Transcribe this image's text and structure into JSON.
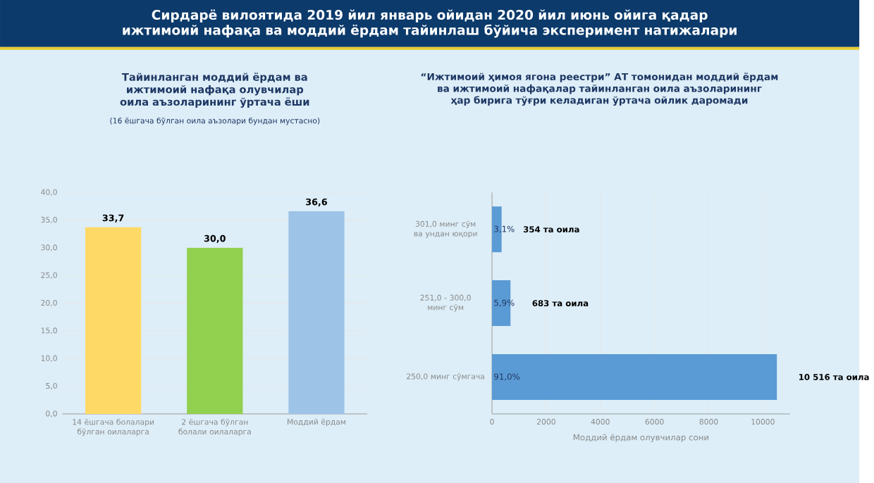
{
  "chart_data": [
    {
      "type": "bar",
      "title": "Тайинланган моддий ёрдам ва ижтимоий нафақа олувчилар оила аъзоларининг ўртача ёши",
      "subtitle": "(16 ёшгача бўлган оила аъзолари бундан мустасно)",
      "annotations": [
        "Сирдарё вилоятида 2019 йил январь ойидан 2020 йил июнь ойига қадар ижтимоий нафақа ва моддий ёрдам тайинлаш бўйича эксперимент натижалари"
      ],
      "categories": [
        "14 ёшгача болалари бўлган оилаларга",
        "2 ёшгача бўлган болали оилаларга",
        "Моддий ёрдам"
      ],
      "values": [
        33.7,
        30.0,
        36.6
      ],
      "value_labels": [
        "33,7",
        "30,0",
        "36,6"
      ],
      "colors": [
        "#ffd966",
        "#92d050",
        "#9dc3e6"
      ],
      "ylim": [
        0,
        40
      ],
      "yticks": [
        {
          "value": 0,
          "label": "0,0"
        },
        {
          "value": 5,
          "label": "5,0"
        },
        {
          "value": 10,
          "label": "10,0"
        },
        {
          "value": 15,
          "label": "15,0"
        },
        {
          "value": 20,
          "label": "20,0"
        },
        {
          "value": 25,
          "label": "25,0"
        },
        {
          "value": 30,
          "label": "30,0"
        },
        {
          "value": 35,
          "label": "35,0"
        },
        {
          "value": 40,
          "label": "40,0"
        }
      ],
      "grid": "y"
    },
    {
      "type": "bar",
      "orientation": "horizontal",
      "title": "“Ижтимоий ҳимоя ягона реестри” АТ томонидан моддий ёрдам ва ижтимоий нафақалар тайинланган оила аъзоларининг ҳар бирига тўғри келадиган ўртача ойлик даромади",
      "xlabel": "Моддий ёрдам олувчилар сони",
      "categories": [
        "301,0 минг сўм ва ундан юқори",
        "251,0 - 300,0 минг сўм",
        "250,0 минг сўмгача"
      ],
      "values": [
        354,
        683,
        10516
      ],
      "value_labels": [
        "354 та оила",
        "683 та оила",
        "10 516 та оила"
      ],
      "annotations": [
        "3,1%",
        "5,9%",
        "91,0%"
      ],
      "color": "#5b9bd5",
      "xlim": [
        0,
        11000
      ],
      "xticks": [
        0,
        2000,
        4000,
        6000,
        8000,
        10000
      ],
      "grid": "x"
    }
  ]
}
